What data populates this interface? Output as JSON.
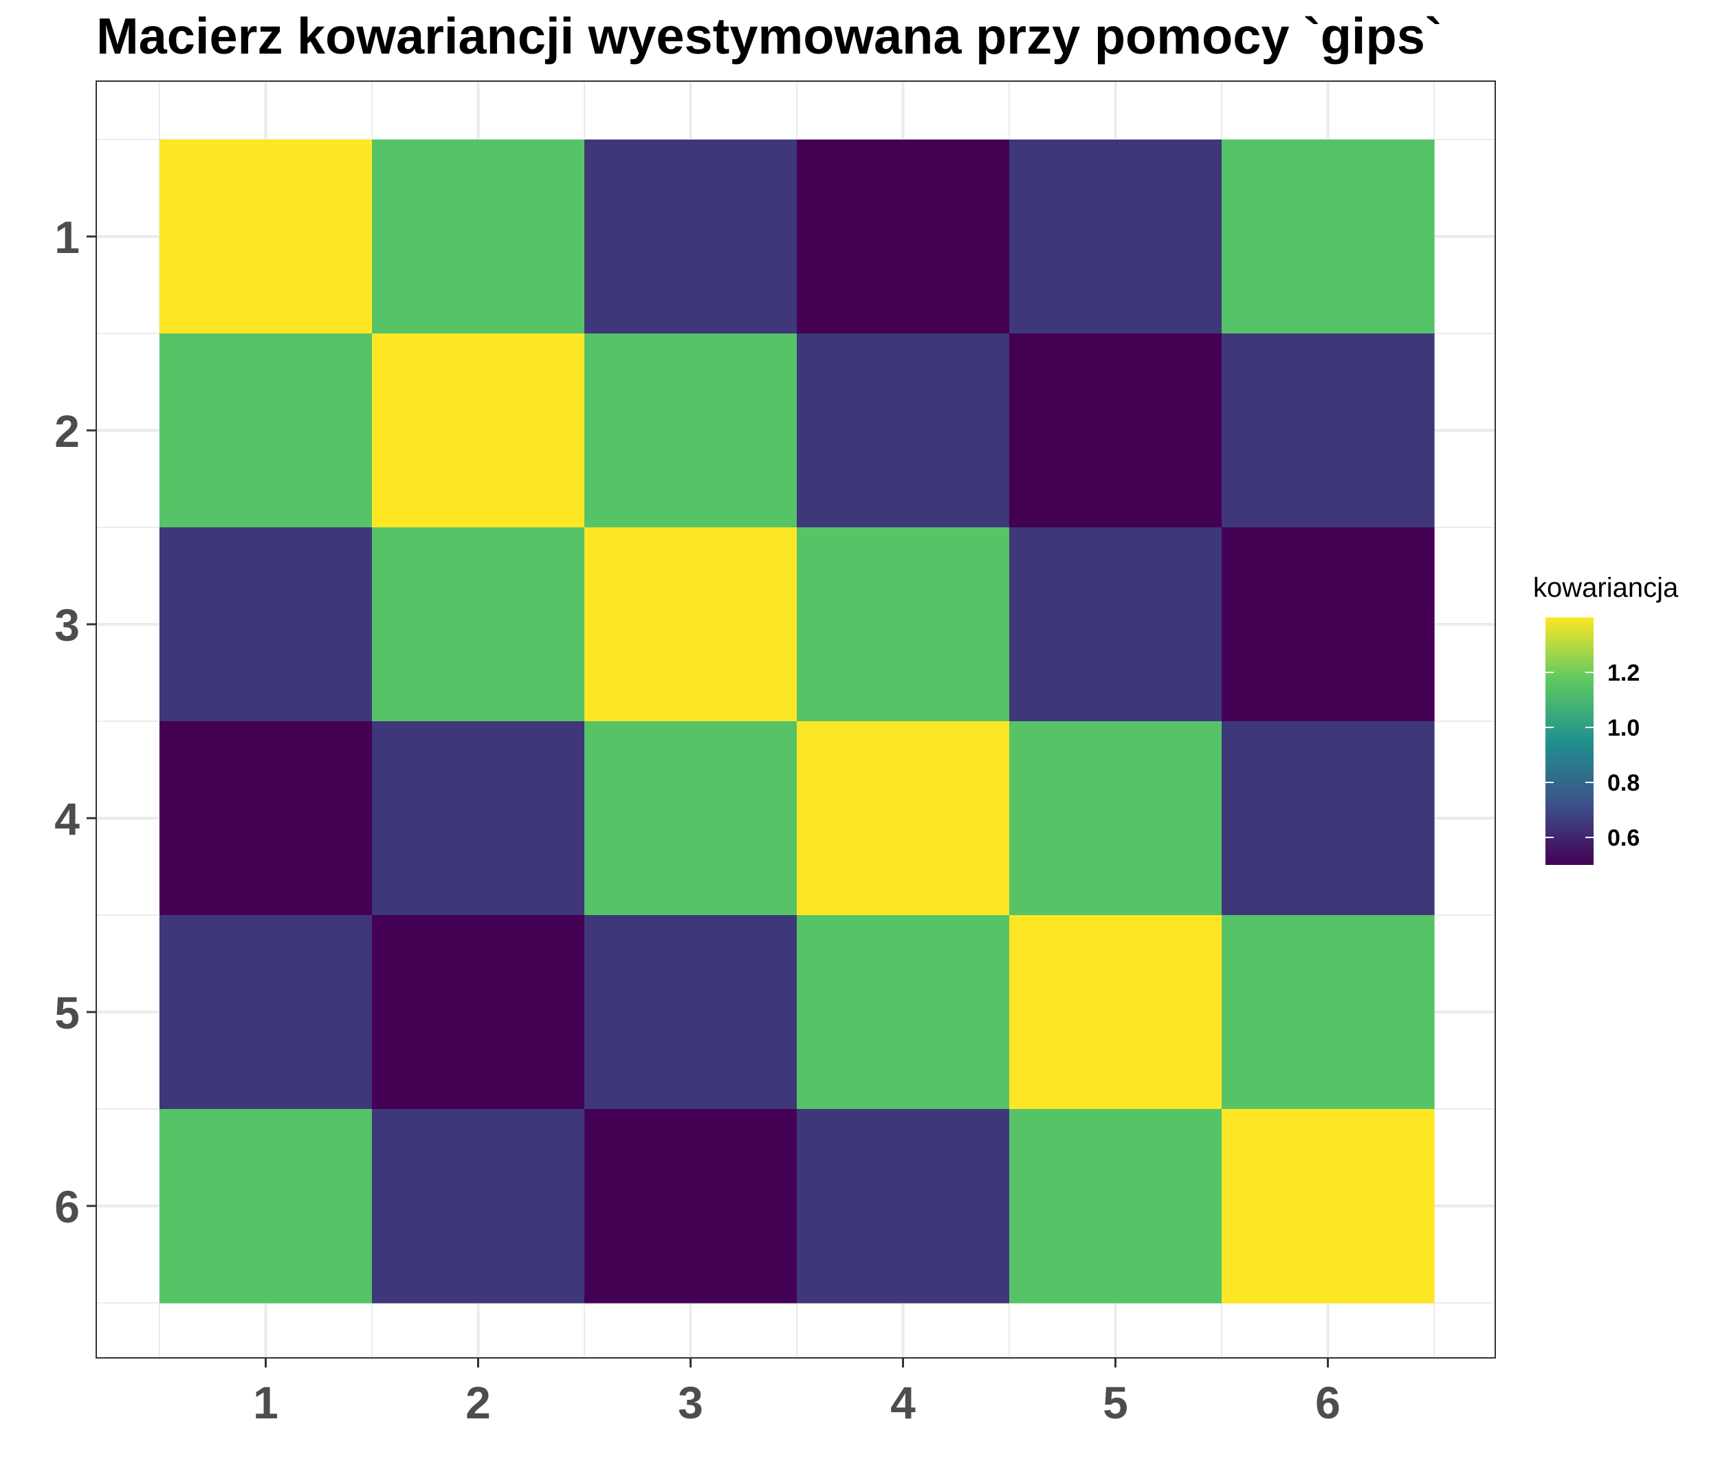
{
  "chart_data": {
    "type": "heatmap",
    "title": "Macierz kowariancji wyestymowana przy pomocy `gips`",
    "x_categories": [
      "1",
      "2",
      "3",
      "4",
      "5",
      "6"
    ],
    "y_categories": [
      "1",
      "2",
      "3",
      "4",
      "5",
      "6"
    ],
    "xlabel": "",
    "ylabel": "",
    "values": [
      [
        1.4,
        1.15,
        0.65,
        0.5,
        0.65,
        1.15
      ],
      [
        1.15,
        1.4,
        1.15,
        0.65,
        0.5,
        0.65
      ],
      [
        0.65,
        1.15,
        1.4,
        1.15,
        0.65,
        0.5
      ],
      [
        0.5,
        0.65,
        1.15,
        1.4,
        1.15,
        0.65
      ],
      [
        0.65,
        0.5,
        0.65,
        1.15,
        1.4,
        1.15
      ],
      [
        1.15,
        0.65,
        0.5,
        0.65,
        1.15,
        1.4
      ]
    ],
    "color_scale": {
      "name": "viridis",
      "min": 0.5,
      "max": 1.4,
      "colors": [
        "#440154",
        "#3b528b",
        "#21918c",
        "#5ec962",
        "#fde725"
      ]
    },
    "legend": {
      "title": "kowariancja",
      "ticks": [
        0.6,
        0.8,
        1.0,
        1.2
      ],
      "tick_labels": [
        "0.6",
        "0.8",
        "1.0",
        "1.2"
      ],
      "position": "right"
    },
    "grid": true,
    "background": "#ffffff",
    "grid_color": "#ebebeb",
    "panel_border_color": "#333333"
  }
}
